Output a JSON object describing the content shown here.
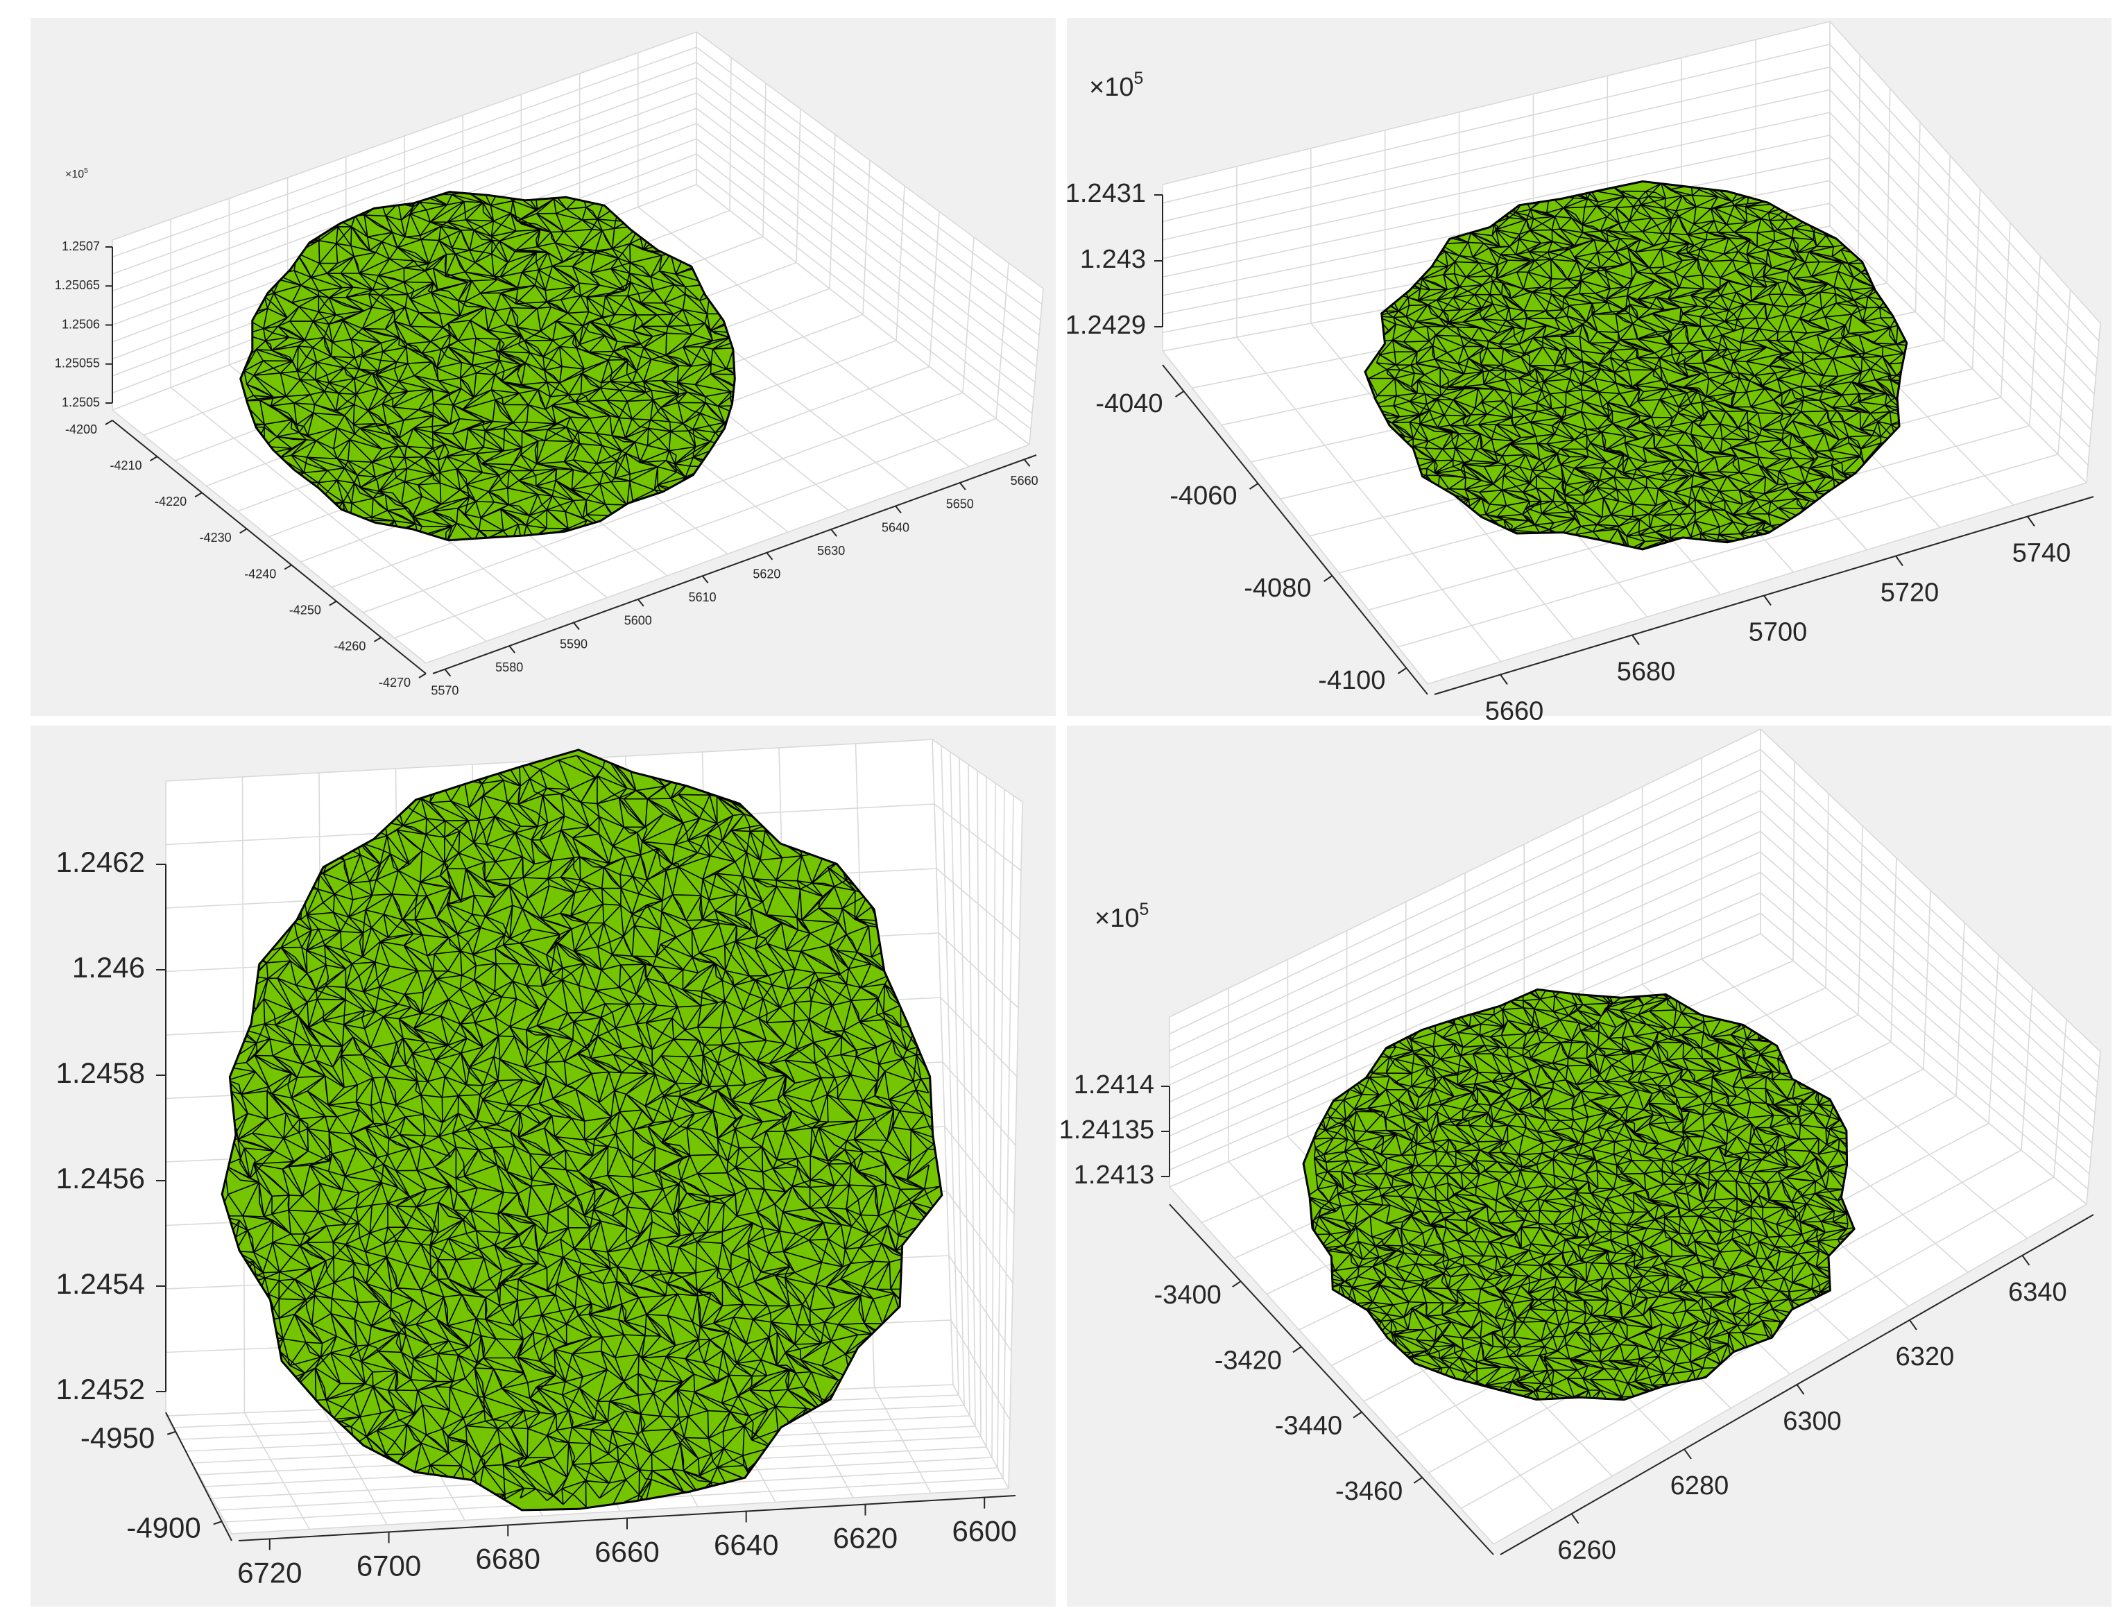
{
  "colors": {
    "surface": "#74c400",
    "edge": "#000000",
    "background": "#f0f0f0",
    "axes_face": "#ffffff"
  },
  "chart_data": [
    {
      "type": "surface-mesh-3d",
      "exponent": "×10",
      "exponent_power": "5",
      "z_ticks": [
        "1.2507",
        "1.25065",
        "1.2506",
        "1.25055",
        "1.2505"
      ],
      "y_ticks": [
        "-4200",
        "-4210",
        "-4220",
        "-4230",
        "-4240",
        "-4250",
        "-4260",
        "-4270"
      ],
      "x_ticks": [
        "5570",
        "5580",
        "5590",
        "5600",
        "5610",
        "5620",
        "5630",
        "5640",
        "5650",
        "5660"
      ],
      "grid": true
    },
    {
      "type": "surface-mesh-3d",
      "exponent": "×10",
      "exponent_power": "5",
      "z_ticks": [
        "1.2431",
        "1.243",
        "1.2429"
      ],
      "y_ticks": [
        "-4040",
        "-4060",
        "-4080",
        "-4100"
      ],
      "x_ticks": [
        "5660",
        "5680",
        "5700",
        "5720",
        "5740"
      ],
      "grid": true
    },
    {
      "type": "surface-mesh-3d",
      "z_ticks": [
        "1.2462",
        "1.246",
        "1.2458",
        "1.2456",
        "1.2454",
        "1.2452"
      ],
      "y_ticks": [
        "-4950",
        "-4900"
      ],
      "x_ticks": [
        "6720",
        "6700",
        "6680",
        "6660",
        "6640",
        "6620",
        "6600"
      ],
      "grid": true
    },
    {
      "type": "surface-mesh-3d",
      "exponent": "×10",
      "exponent_power": "5",
      "z_ticks": [
        "1.2414",
        "1.24135",
        "1.2413"
      ],
      "y_ticks": [
        "-3400",
        "-3420",
        "-3440",
        "-3460"
      ],
      "x_ticks": [
        "6260",
        "6280",
        "6300",
        "6320",
        "6340"
      ],
      "grid": true
    }
  ]
}
